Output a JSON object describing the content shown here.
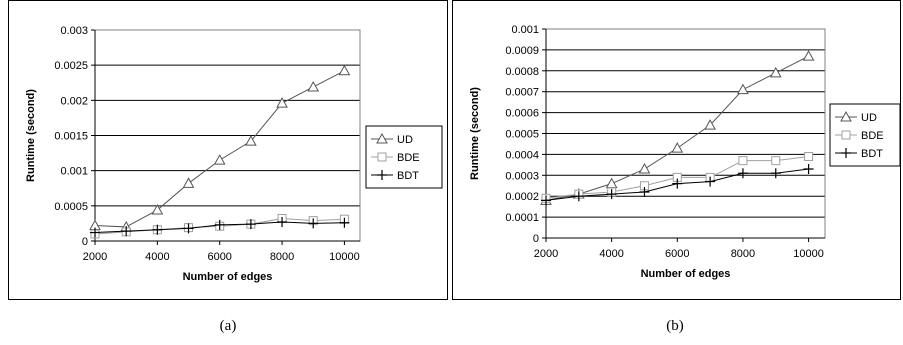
{
  "charts": [
    {
      "caption": "(a)",
      "chart_data": {
        "type": "line",
        "xlabel": "Number of edges",
        "ylabel": "Runtime (second)",
        "x": [
          2000,
          3000,
          4000,
          5000,
          6000,
          7000,
          8000,
          9000,
          10000
        ],
        "xticks": [
          "2000",
          "4000",
          "6000",
          "8000",
          "10000"
        ],
        "xlim": [
          2000,
          10000
        ],
        "ylim": [
          0,
          0.003
        ],
        "yticks": [
          "0",
          "0.0005",
          "0.001",
          "0.0015",
          "0.002",
          "0.0025",
          "0.003"
        ],
        "grid": "horizontal",
        "legend_position": "right",
        "series": [
          {
            "name": "UD",
            "marker": "triangle",
            "color": "#555555",
            "values": [
              0.00022,
              0.0002,
              0.00044,
              0.00082,
              0.00115,
              0.00142,
              0.00196,
              0.00219,
              0.00242
            ]
          },
          {
            "name": "BDE",
            "marker": "square",
            "color": "#a0a0a0",
            "values": [
              0.0001,
              0.00013,
              0.00016,
              0.00019,
              0.00021,
              0.00024,
              0.00032,
              0.00029,
              0.00031
            ]
          },
          {
            "name": "BDT",
            "marker": "plus",
            "color": "#000000",
            "values": [
              0.00012,
              0.00014,
              0.00016,
              0.00018,
              0.00023,
              0.00024,
              0.00027,
              0.00025,
              0.00026
            ]
          }
        ]
      }
    },
    {
      "caption": "(b)",
      "chart_data": {
        "type": "line",
        "xlabel": "Number of edges",
        "ylabel": "Runtime (second)",
        "x": [
          2000,
          3000,
          4000,
          5000,
          6000,
          7000,
          8000,
          9000,
          10000
        ],
        "xticks": [
          "2000",
          "4000",
          "6000",
          "8000",
          "10000"
        ],
        "xlim": [
          2000,
          10000
        ],
        "ylim": [
          0,
          0.001
        ],
        "yticks": [
          "0",
          "0.0001",
          "0.0002",
          "0.0003",
          "0.0004",
          "0.0005",
          "0.0006",
          "0.0007",
          "0.0008",
          "0.0009",
          "0.001"
        ],
        "grid": "horizontal",
        "legend_position": "right",
        "series": [
          {
            "name": "UD",
            "marker": "triangle",
            "color": "#555555",
            "values": [
              0.00018,
              0.00021,
              0.00026,
              0.00033,
              0.00043,
              0.00054,
              0.00071,
              0.00079,
              0.00087
            ]
          },
          {
            "name": "BDE",
            "marker": "square",
            "color": "#a0a0a0",
            "values": [
              0.00019,
              0.00021,
              0.00022,
              0.00025,
              0.00029,
              0.00029,
              0.00037,
              0.00037,
              0.00039
            ]
          },
          {
            "name": "BDT",
            "marker": "plus",
            "color": "#000000",
            "values": [
              0.00018,
              0.0002,
              0.00021,
              0.00022,
              0.00026,
              0.00027,
              0.00031,
              0.00031,
              0.00033
            ]
          }
        ]
      }
    }
  ]
}
